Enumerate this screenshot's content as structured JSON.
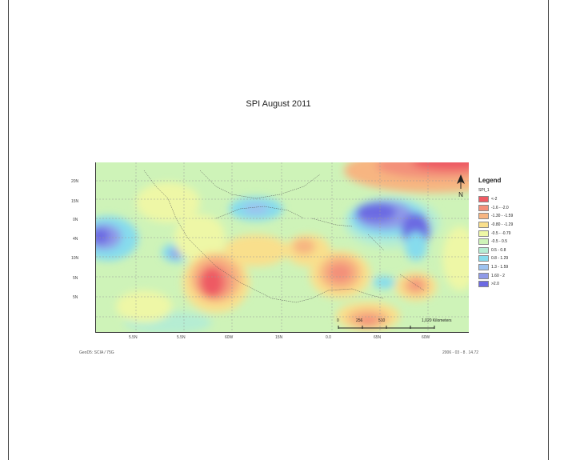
{
  "title": "SPI  August 2011",
  "legend": {
    "heading": "Legend",
    "field": "SPI_1",
    "classes": [
      {
        "label": "<-2",
        "color": "#ee5a63"
      },
      {
        "label": "-1.6 - -2.0",
        "color": "#f3907a"
      },
      {
        "label": "-1.30 - -1.59",
        "color": "#f7b581"
      },
      {
        "label": "-0.80 - -1.29",
        "color": "#f9df8c"
      },
      {
        "label": "-0.5 - -0.79",
        "color": "#eef7a6"
      },
      {
        "label": "-0.5 - 0.5",
        "color": "#cef3b8"
      },
      {
        "label": "0.5 - 0.8",
        "color": "#b5edd3"
      },
      {
        "label": "0.8 - 1.29",
        "color": "#86dced"
      },
      {
        "label": "1.3 - 1.59",
        "color": "#9dc2ef"
      },
      {
        "label": "1.60 - 2",
        "color": "#8f9ae8"
      },
      {
        "label": ">2.0",
        "color": "#6c6ae2"
      }
    ]
  },
  "lat_labels": [
    "",
    "20N",
    "15N",
    "0N",
    "4N",
    "10N",
    "5N",
    "5N"
  ],
  "lon_labels": [
    "5.5N",
    "5.5N",
    "60W",
    "15N",
    "0.0",
    "65N",
    "60W"
  ],
  "scale": {
    "ticks": [
      "0",
      "256",
      "510",
      "1,020 Kilometers"
    ]
  },
  "north_label": "N",
  "footer_left": "GeoD5: SCIA / 75G",
  "footer_right": "2006 - 03 - 8 . 14.72"
}
